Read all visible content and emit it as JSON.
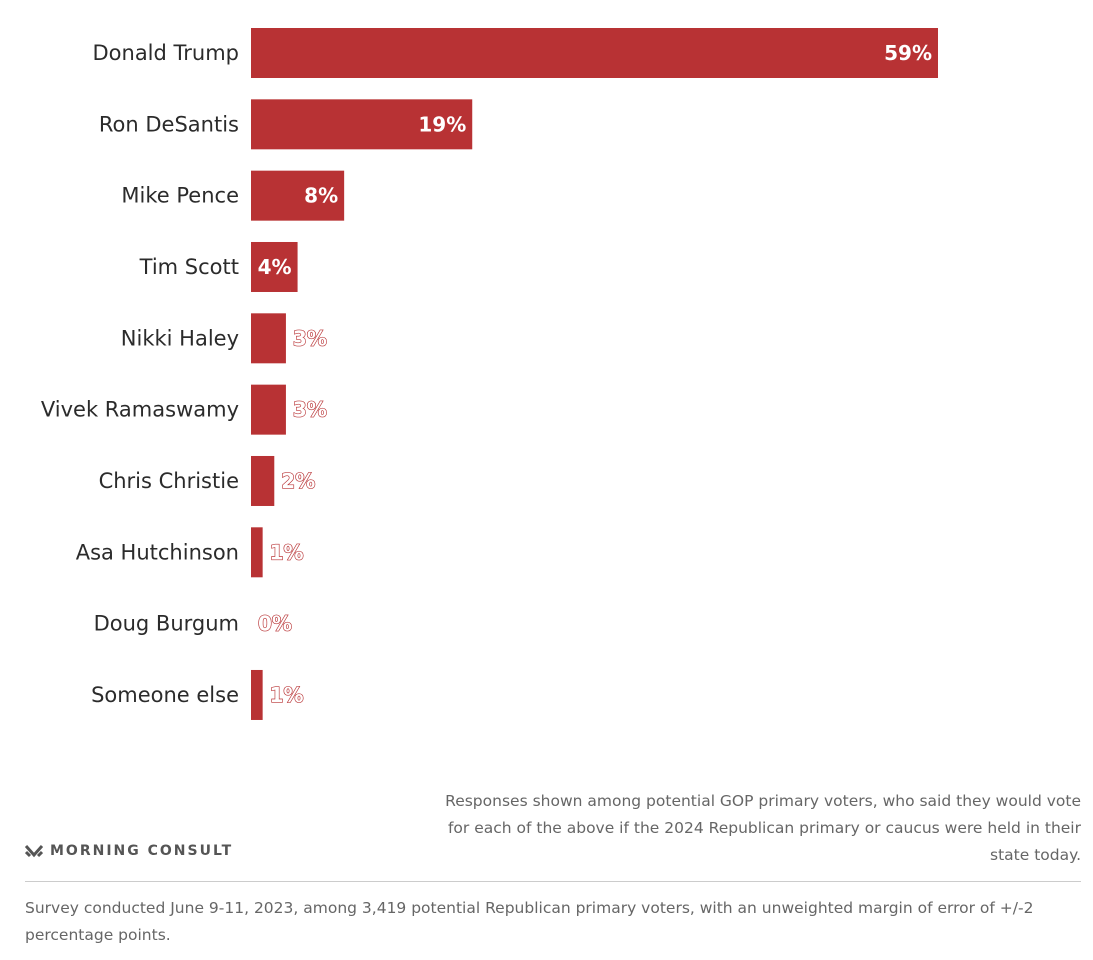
{
  "chart_data": {
    "type": "bar",
    "orientation": "horizontal",
    "categories": [
      "Donald Trump",
      "Ron DeSantis",
      "Mike Pence",
      "Tim Scott",
      "Nikki Haley",
      "Vivek Ramaswamy",
      "Chris Christie",
      "Asa Hutchinson",
      "Doug Burgum",
      "Someone else"
    ],
    "values": [
      59,
      19,
      8,
      4,
      3,
      3,
      2,
      1,
      0,
      1
    ],
    "value_labels": [
      "59%",
      "19%",
      "8%",
      "4%",
      "3%",
      "3%",
      "2%",
      "1%",
      "0%",
      "1%"
    ],
    "unit": "%",
    "title": "",
    "xlabel": "",
    "ylabel": "",
    "xlim": [
      0,
      59
    ],
    "grid": false,
    "legend": "none",
    "bar_color": "#b83234"
  },
  "brand": {
    "name": "MORNING CONSULT",
    "mark": "morning-consult-logo-icon"
  },
  "note": "Responses shown among potential GOP primary voters, who said they would vote for each of the above if the 2024 Republican primary or caucus were held in their state today.",
  "survey": "Survey conducted June 9-11, 2023, among 3,419 potential Republican primary voters, with an unweighted margin of error of +/-2 percentage points.",
  "colors": {
    "bar": "#b83234",
    "text": "#2b2b2b",
    "muted": "#666666",
    "divider": "#cccccc"
  }
}
